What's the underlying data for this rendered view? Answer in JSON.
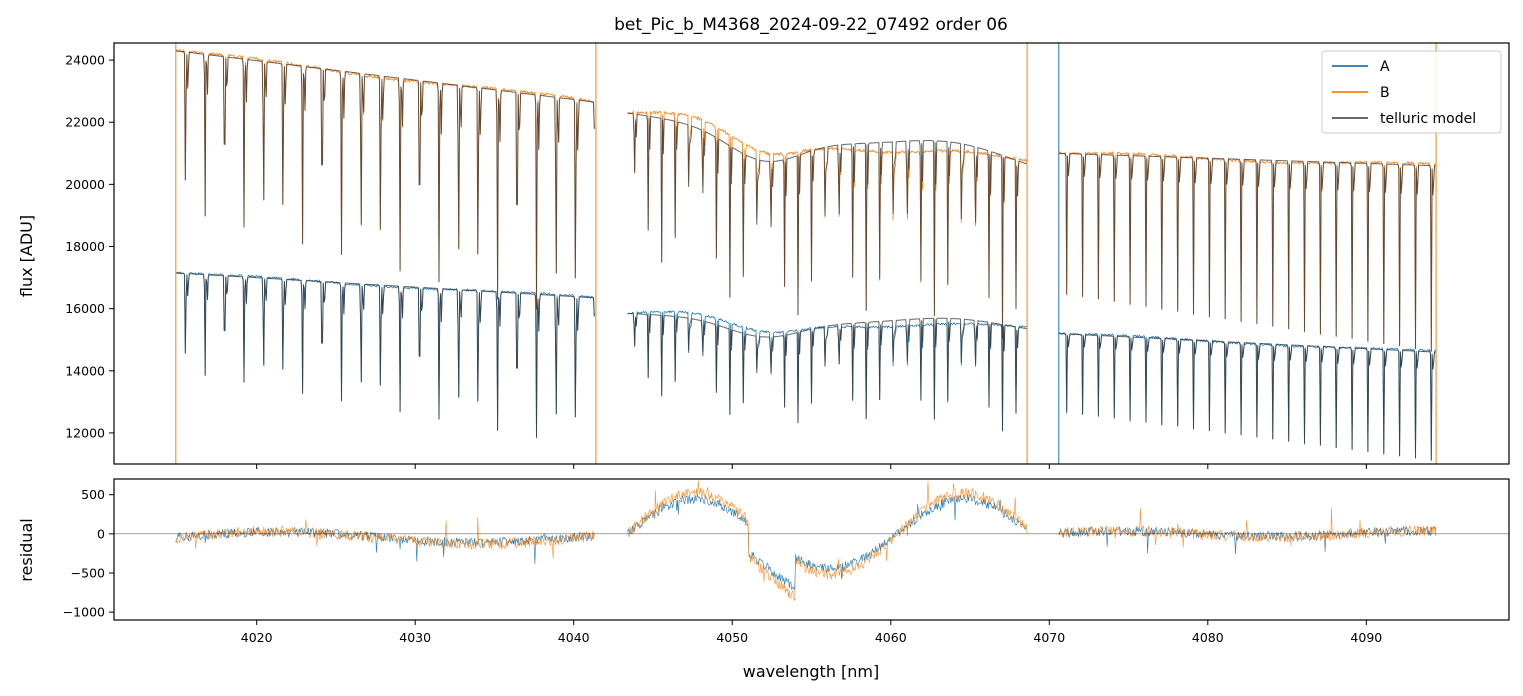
{
  "chart_data": [
    {
      "type": "line",
      "title": "bet_Pic_b_M4368_2024-09-22_07492  order 06",
      "xlabel": "",
      "ylabel": "flux [ADU]",
      "xlim": [
        4011,
        4099
      ],
      "ylim": [
        11000,
        24550
      ],
      "yticks": [
        12000,
        14000,
        16000,
        18000,
        20000,
        22000,
        24000
      ],
      "ytick_labels": [
        "12000",
        "14000",
        "16000",
        "18000",
        "20000",
        "22000",
        "24000"
      ],
      "xticks": [
        4020,
        4030,
        4040,
        4050,
        4060,
        4070,
        4080,
        4090
      ],
      "legend": {
        "position": "top-right",
        "entries": [
          {
            "label": "A",
            "color": "#1f77b4"
          },
          {
            "label": "B",
            "color": "#ff7f0e"
          },
          {
            "label": "telluric model",
            "color": "#555555"
          }
        ]
      },
      "segments": [
        {
          "x_start": 4014.9,
          "x_end": 4041.3,
          "B_top": 24300,
          "B_bottom": 22650,
          "A_top": 17150,
          "A_bottom": 16350,
          "line_spacing_nm": 1.23
        },
        {
          "x_start": 4043.4,
          "x_end": 4068.6,
          "B_top": 22300,
          "B_bottom": 20400,
          "A_top": 15850,
          "A_bottom": 15200,
          "line_spacing_nm": 0.86
        },
        {
          "x_start": 4070.6,
          "x_end": 4094.4,
          "B_top": 21000,
          "B_bottom": 20600,
          "A_top": 15200,
          "A_bottom": 14600,
          "line_spacing_nm": 1.0
        }
      ],
      "series": [
        {
          "name": "A",
          "description": "lower continuum ~14000-17000 ADU with deep periodic absorption lines"
        },
        {
          "name": "B",
          "description": "upper continuum ~20000-24300 ADU with deep periodic absorption lines"
        },
        {
          "name": "telluric model",
          "description": "model overlaid on both A and B"
        }
      ]
    },
    {
      "type": "line",
      "xlabel": "wavelength [nm]",
      "ylabel": "residual",
      "xlim": [
        4011,
        4099
      ],
      "ylim": [
        -1100,
        700
      ],
      "yticks": [
        -1000,
        -500,
        0,
        500
      ],
      "ytick_labels": [
        "−1000",
        "−500",
        "0",
        "500"
      ],
      "xticks": [
        4020,
        4030,
        4040,
        4050,
        4060,
        4070,
        4080,
        4090
      ],
      "xtick_labels": [
        "4020",
        "4030",
        "4040",
        "4050",
        "4060",
        "4070",
        "4080",
        "4090"
      ],
      "reference_line": 0,
      "series": [
        {
          "name": "A",
          "description": "residual A minus model, structured waves between -1000 and 500"
        },
        {
          "name": "B",
          "description": "residual B minus model, structured waves between -1000 and 650"
        }
      ]
    }
  ]
}
